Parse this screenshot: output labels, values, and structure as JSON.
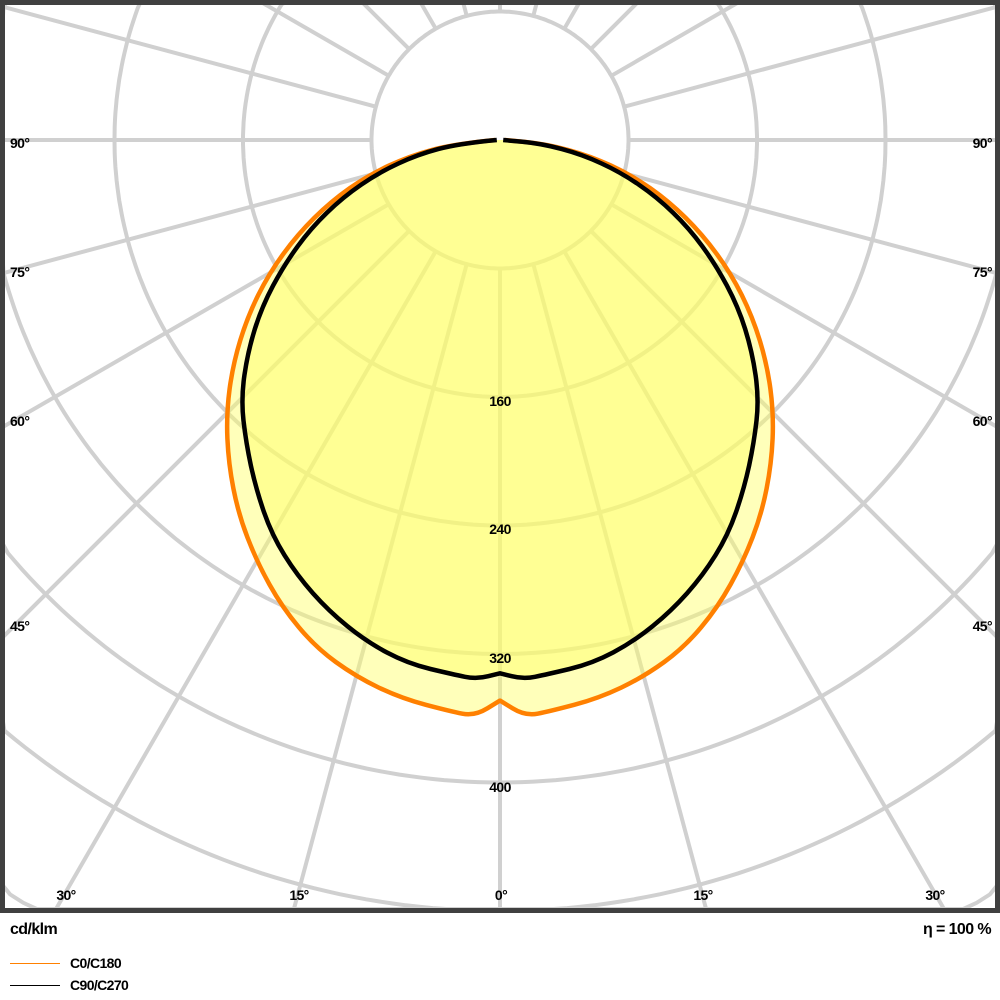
{
  "chart_data": {
    "type": "polar-line",
    "unit_label": "cd/klm",
    "efficiency_label": "η = 100 %",
    "radial_ticks": [
      80,
      160,
      240,
      320,
      400,
      480,
      560
    ],
    "radial_tick_labels": [
      "160",
      "240",
      "320",
      "400"
    ],
    "angle_labels": {
      "side": [
        "90°",
        "75°",
        "60°",
        "45°"
      ],
      "bottom_left": [
        "30°",
        "15°"
      ],
      "bottom_center": "0°",
      "bottom_right": [
        "15°",
        "30°"
      ]
    },
    "angles_deg": [
      0,
      2.5,
      5,
      10,
      15,
      20,
      25,
      30,
      35,
      40,
      45,
      50,
      55,
      60,
      65,
      70,
      75,
      80,
      85,
      90
    ],
    "series": [
      {
        "name": "C0/C180",
        "color": "#ff8000",
        "values": [
          349,
          359,
          357,
          353,
          346,
          336,
          321,
          303,
          284,
          263,
          241,
          217,
          192,
          166,
          139,
          112,
          85,
          57,
          29,
          3
        ]
      },
      {
        "name": "C90/C270",
        "color": "#000000",
        "values": [
          332,
          336,
          334,
          331,
          323,
          312,
          299,
          284,
          265,
          246,
          228,
          205,
          181,
          155,
          130,
          104,
          78,
          52,
          26,
          2
        ]
      }
    ],
    "fill_color": "#ffff66",
    "grid_color": "#d0d0d0",
    "grid": true
  }
}
